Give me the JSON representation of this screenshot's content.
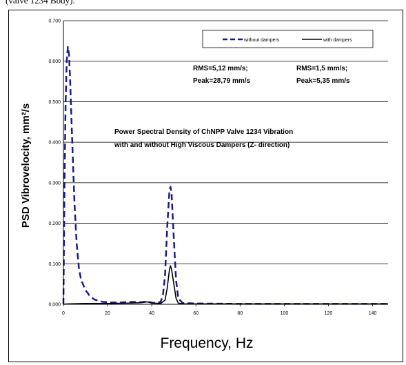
{
  "caption_fragment": "(valve 1234 Body).",
  "chart_data": {
    "type": "line",
    "title_lines": [
      "Power Spectral Density of ChNPP Valve 1234 Vibration",
      "with and without  High Viscous Dampers (Z- direction)"
    ],
    "xlabel": "Frequency, Hz",
    "ylabel": "PSD Vibrovelocity, mm²/s",
    "xlim": [
      0,
      147
    ],
    "ylim": [
      0,
      0.7
    ],
    "x_ticks": [
      "0",
      "20",
      "40",
      "60",
      "80",
      "100",
      "120",
      "140"
    ],
    "y_ticks": [
      "0.000",
      "0.100",
      "0.200",
      "0.300",
      "0.400",
      "0.500",
      "0.600",
      "0.700"
    ],
    "grid": "horizontal",
    "legend_position": "top-right",
    "annotations": {
      "without": [
        "RMS=5,12 mm/s;",
        "Peak=28,79 mm/s"
      ],
      "with": [
        "RMS=1,5 mm/s;",
        "Peak=5,35 mm/s"
      ]
    },
    "series": [
      {
        "name": "without dampers",
        "style": "dashed",
        "color": "#1a1a8c",
        "points": [
          [
            0,
            0
          ],
          [
            0.5,
            0.3
          ],
          [
            1,
            0.5
          ],
          [
            1.5,
            0.6
          ],
          [
            2,
            0.635
          ],
          [
            2.5,
            0.62
          ],
          [
            3,
            0.56
          ],
          [
            4,
            0.4
          ],
          [
            5,
            0.25
          ],
          [
            6,
            0.15
          ],
          [
            7,
            0.09
          ],
          [
            8,
            0.06
          ],
          [
            10,
            0.035
          ],
          [
            12,
            0.02
          ],
          [
            14,
            0.012
          ],
          [
            16,
            0.008
          ],
          [
            18,
            0.006
          ],
          [
            20,
            0.005
          ],
          [
            25,
            0.004
          ],
          [
            30,
            0.006
          ],
          [
            35,
            0.005
          ],
          [
            38,
            0.007
          ],
          [
            40,
            0.004
          ],
          [
            42,
            0.003
          ],
          [
            44,
            0.006
          ],
          [
            45,
            0.02
          ],
          [
            46,
            0.07
          ],
          [
            47,
            0.19
          ],
          [
            48,
            0.28
          ],
          [
            48.5,
            0.29
          ],
          [
            49,
            0.27
          ],
          [
            50,
            0.16
          ],
          [
            51,
            0.06
          ],
          [
            52,
            0.015
          ],
          [
            54,
            0.003
          ],
          [
            60,
            0.002
          ],
          [
            80,
            0.001
          ],
          [
            100,
            0.001
          ],
          [
            147,
            0.001
          ]
        ]
      },
      {
        "name": "with dampers",
        "style": "solid",
        "color": "#000000",
        "points": [
          [
            0,
            0
          ],
          [
            2,
            0.001
          ],
          [
            10,
            0.002
          ],
          [
            20,
            0.002
          ],
          [
            30,
            0.003
          ],
          [
            35,
            0.004
          ],
          [
            38,
            0.006
          ],
          [
            40,
            0.003
          ],
          [
            44,
            0.002
          ],
          [
            46,
            0.01
          ],
          [
            47,
            0.04
          ],
          [
            48,
            0.085
          ],
          [
            48.5,
            0.095
          ],
          [
            49,
            0.085
          ],
          [
            50,
            0.05
          ],
          [
            51,
            0.015
          ],
          [
            52,
            0.003
          ],
          [
            54,
            0.001
          ],
          [
            60,
            0.001
          ],
          [
            100,
            0.001
          ],
          [
            147,
            0.001
          ]
        ]
      }
    ]
  }
}
